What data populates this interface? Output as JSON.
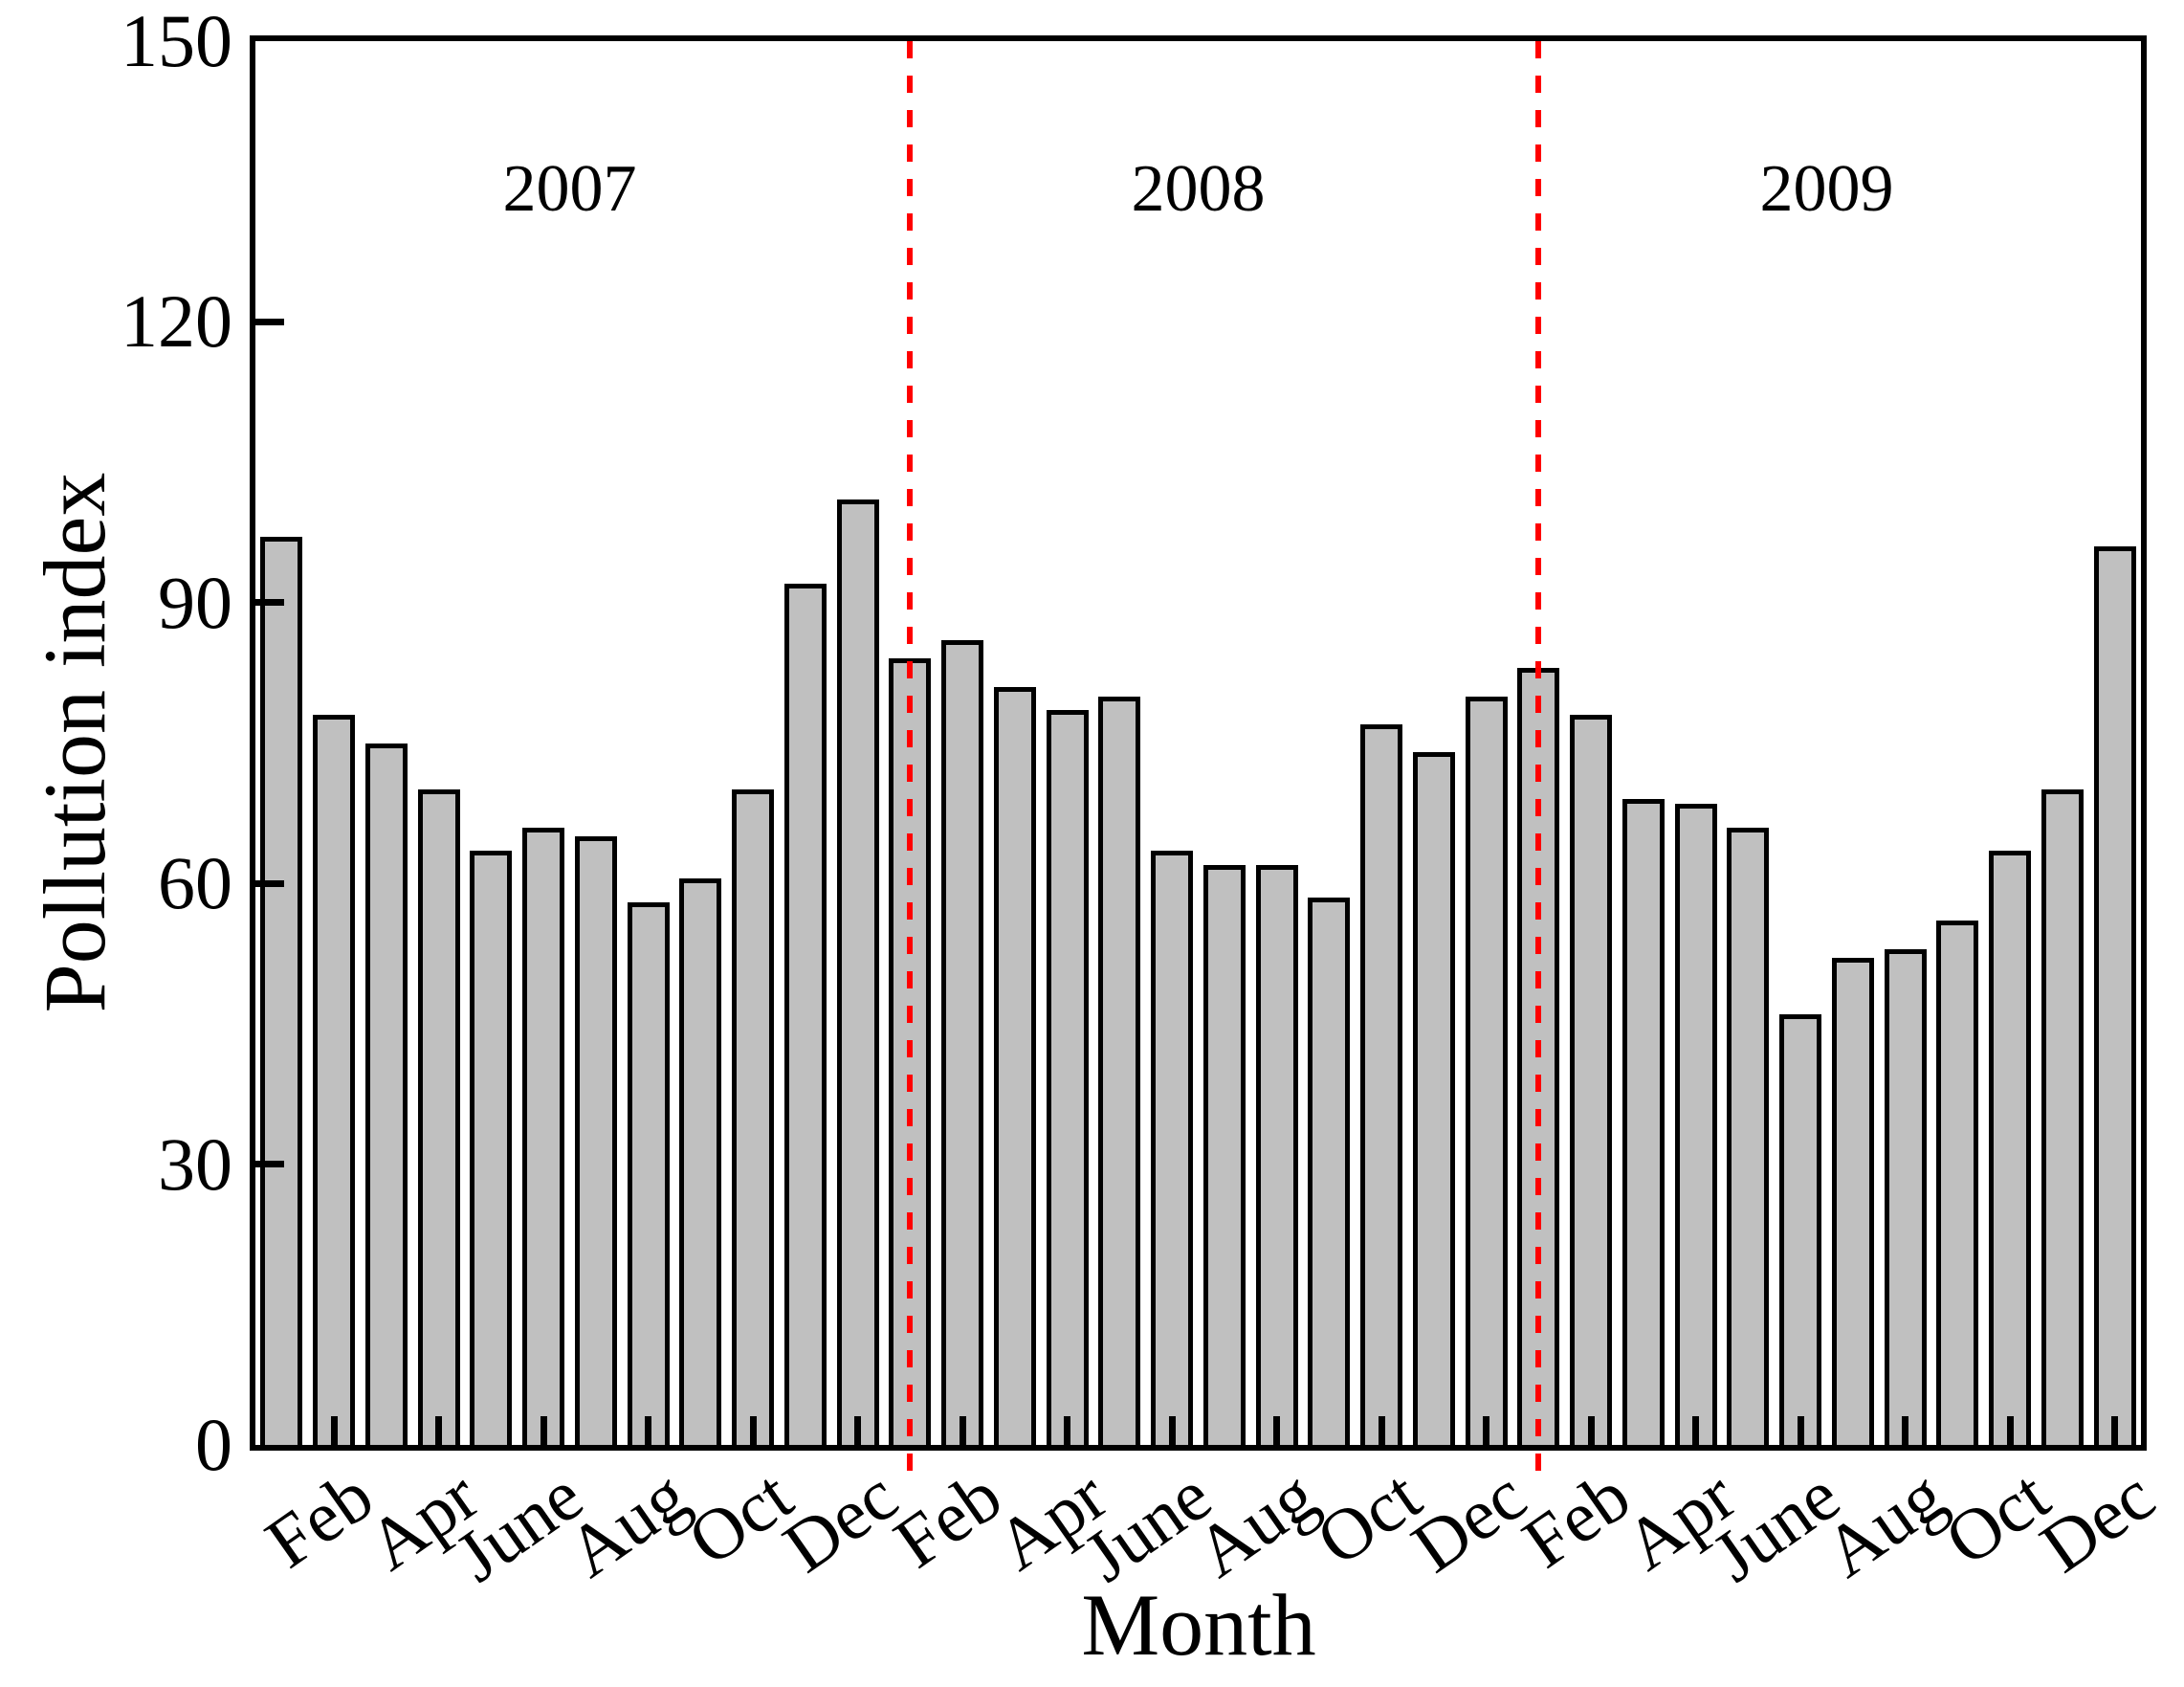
{
  "chart_data": {
    "type": "bar",
    "title": "",
    "xlabel": "Month",
    "ylabel": "Pollution index",
    "ylim": [
      0,
      150
    ],
    "yticks": [
      0,
      30,
      60,
      90,
      120,
      150
    ],
    "grid": "off",
    "legend": "none",
    "years": [
      "2007",
      "2008",
      "2009"
    ],
    "x_tick_labels": [
      "Feb",
      "Apr",
      "June",
      "Aug",
      "Oct",
      "Dec",
      "Feb",
      "Apr",
      "June",
      "Aug",
      "Oct",
      "Dec",
      "Feb",
      "Apr",
      "June",
      "Aug",
      "Oct",
      "Dec"
    ],
    "labeled_month_indices": [
      1,
      3,
      5,
      7,
      9,
      11,
      13,
      15,
      17,
      19,
      21,
      23,
      25,
      27,
      29,
      31,
      33,
      35
    ],
    "categories": [
      "2007-01",
      "2007-02",
      "2007-03",
      "2007-04",
      "2007-05",
      "2007-06",
      "2007-07",
      "2007-08",
      "2007-09",
      "2007-10",
      "2007-11",
      "2007-12",
      "2008-01",
      "2008-02",
      "2008-03",
      "2008-04",
      "2008-05",
      "2008-06",
      "2008-07",
      "2008-08",
      "2008-09",
      "2008-10",
      "2008-11",
      "2008-12",
      "2009-01",
      "2009-02",
      "2009-03",
      "2009-04",
      "2009-05",
      "2009-06",
      "2009-07",
      "2009-08",
      "2009-09",
      "2009-10",
      "2009-11",
      "2009-12"
    ],
    "series": [
      {
        "name": "2007",
        "values": [
          97,
          78,
          75,
          70,
          63.5,
          66,
          65,
          58,
          60.5,
          70,
          92,
          101
        ]
      },
      {
        "name": "2008",
        "values": [
          84,
          86,
          81,
          78.5,
          80,
          63.5,
          62,
          62,
          58.5,
          77,
          74,
          80
        ]
      },
      {
        "name": "2009",
        "values": [
          83,
          78,
          69,
          68.5,
          66,
          46,
          52,
          53,
          56,
          63.5,
          70,
          96
        ]
      }
    ],
    "year_separators_month_boundaries": [
      12.5,
      24.5
    ],
    "colors": {
      "bar_fill": "#c0c0c0",
      "bar_edge": "#000000",
      "separator": "#ff0000",
      "text": "#000000",
      "background": "#ffffff"
    }
  }
}
